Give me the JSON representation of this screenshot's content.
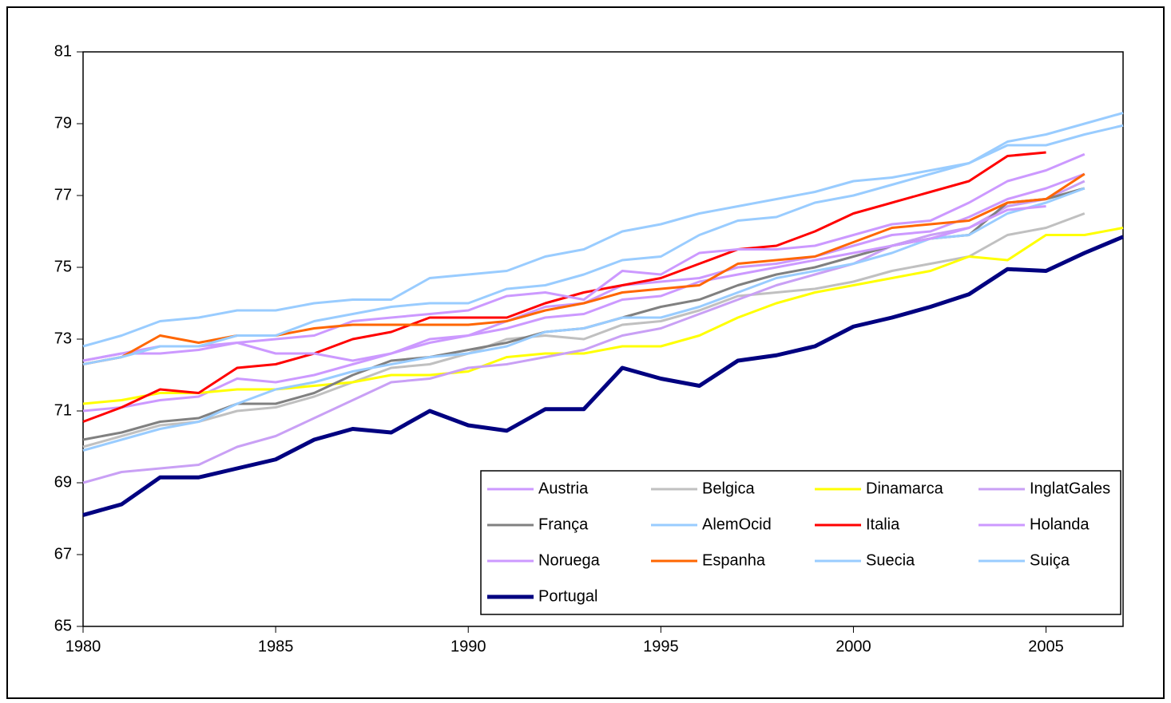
{
  "chart_data": {
    "type": "line",
    "x": [
      1980,
      1981,
      1982,
      1983,
      1984,
      1985,
      1986,
      1987,
      1988,
      1989,
      1990,
      1991,
      1992,
      1993,
      1994,
      1995,
      1996,
      1997,
      1998,
      1999,
      2000,
      2001,
      2002,
      2003,
      2004,
      2005,
      2006,
      2007
    ],
    "xlim": [
      1980,
      2007
    ],
    "xticks": [
      1980,
      1985,
      1990,
      1995,
      2000,
      2005
    ],
    "ylim": [
      65,
      81
    ],
    "yticks": [
      65,
      67,
      69,
      71,
      73,
      75,
      77,
      79,
      81
    ],
    "legend": "bottom right",
    "series": [
      {
        "name": "Austria",
        "color": "#cc99ff",
        "values": [
          71.0,
          71.1,
          71.3,
          71.4,
          71.9,
          71.8,
          72.0,
          72.3,
          72.6,
          72.9,
          73.1,
          73.5,
          73.9,
          74.0,
          74.5,
          74.6,
          74.7,
          75.0,
          75.1,
          75.3,
          75.6,
          75.9,
          76.0,
          76.4,
          76.9,
          77.2,
          77.6,
          null
        ]
      },
      {
        "name": "Belgica",
        "color": "#c0c0c0",
        "values": [
          70.0,
          70.3,
          70.6,
          70.7,
          71.0,
          71.1,
          71.4,
          71.8,
          72.2,
          72.3,
          72.6,
          73.0,
          73.1,
          73.0,
          73.4,
          73.5,
          73.8,
          74.2,
          74.3,
          74.4,
          74.6,
          74.9,
          75.1,
          75.3,
          75.9,
          76.1,
          76.5,
          null
        ]
      },
      {
        "name": "Dinamarca",
        "color": "#ffff00",
        "values": [
          71.2,
          71.3,
          71.5,
          71.5,
          71.6,
          71.6,
          71.7,
          71.8,
          72.0,
          72.0,
          72.1,
          72.5,
          72.6,
          72.6,
          72.8,
          72.8,
          73.1,
          73.6,
          74.0,
          74.3,
          74.5,
          74.7,
          74.9,
          75.3,
          75.2,
          75.9,
          75.9,
          76.1
        ]
      },
      {
        "name": "InglatGales",
        "color": "#c9a0f5",
        "values": [
          69.0,
          69.3,
          69.4,
          69.5,
          70.0,
          70.3,
          70.8,
          71.3,
          71.8,
          71.9,
          72.2,
          72.3,
          72.5,
          72.7,
          73.1,
          73.3,
          73.7,
          74.1,
          74.5,
          74.8,
          75.1,
          75.6,
          75.9,
          76.1,
          76.7,
          76.9,
          77.4,
          null
        ]
      },
      {
        "name": "França",
        "color": "#808080",
        "values": [
          70.2,
          70.4,
          70.7,
          70.8,
          71.2,
          71.2,
          71.5,
          72.0,
          72.4,
          72.5,
          72.7,
          72.9,
          73.2,
          73.3,
          73.6,
          73.9,
          74.1,
          74.5,
          74.8,
          75.0,
          75.3,
          75.6,
          75.8,
          75.9,
          76.8,
          76.9,
          77.2,
          null
        ]
      },
      {
        "name": "AlemOcid",
        "color": "#99ccff",
        "values": [
          69.9,
          70.2,
          70.5,
          70.7,
          71.2,
          71.6,
          71.8,
          72.1,
          72.3,
          72.5,
          72.6,
          72.8,
          73.2,
          73.3,
          73.6,
          73.6,
          73.9,
          74.3,
          74.7,
          74.9,
          75.1,
          75.4,
          75.8,
          75.9,
          76.5,
          76.8,
          77.2,
          null
        ]
      },
      {
        "name": "Italia",
        "color": "#ff0000",
        "values": [
          70.7,
          71.1,
          71.6,
          71.5,
          72.2,
          72.3,
          72.6,
          73.0,
          73.2,
          73.6,
          73.6,
          73.6,
          74.0,
          74.3,
          74.5,
          74.7,
          75.1,
          75.5,
          75.6,
          76.0,
          76.5,
          76.8,
          77.1,
          77.4,
          78.1,
          78.2,
          null,
          null
        ]
      },
      {
        "name": "Holanda",
        "color": "#cc99ff",
        "values": [
          72.4,
          72.6,
          72.6,
          72.7,
          72.9,
          72.6,
          72.6,
          72.4,
          72.6,
          73.0,
          73.1,
          73.3,
          73.6,
          73.7,
          74.1,
          74.2,
          74.6,
          74.8,
          75.0,
          75.2,
          75.4,
          75.6,
          75.8,
          76.1,
          76.6,
          76.7,
          null,
          null
        ]
      },
      {
        "name": "Noruega",
        "color": "#cc99ff",
        "values": [
          72.4,
          72.6,
          72.8,
          72.8,
          72.9,
          73.0,
          73.1,
          73.5,
          73.6,
          73.7,
          73.8,
          74.2,
          74.3,
          74.1,
          74.9,
          74.8,
          75.4,
          75.5,
          75.5,
          75.6,
          75.9,
          76.2,
          76.3,
          76.8,
          77.4,
          77.7,
          78.15,
          null
        ]
      },
      {
        "name": "Espanha",
        "color": "#ff6600",
        "values": [
          72.3,
          72.5,
          73.1,
          72.9,
          73.1,
          73.1,
          73.3,
          73.4,
          73.4,
          73.4,
          73.4,
          73.5,
          73.8,
          74.0,
          74.3,
          74.4,
          74.5,
          75.1,
          75.2,
          75.3,
          75.7,
          76.1,
          76.2,
          76.3,
          76.8,
          76.9,
          77.6,
          null
        ]
      },
      {
        "name": "Suecia",
        "color": "#99ccff",
        "values": [
          72.3,
          72.5,
          72.8,
          72.8,
          73.1,
          73.1,
          73.5,
          73.7,
          73.9,
          74.0,
          74.0,
          74.4,
          74.5,
          74.8,
          75.2,
          75.3,
          75.9,
          76.3,
          76.4,
          76.8,
          77.0,
          77.3,
          77.6,
          77.9,
          78.4,
          78.4,
          78.7,
          78.95
        ]
      },
      {
        "name": "Suiça",
        "color": "#99ccff",
        "values": [
          72.8,
          73.1,
          73.5,
          73.6,
          73.8,
          73.8,
          74.0,
          74.1,
          74.1,
          74.7,
          74.8,
          74.9,
          75.3,
          75.5,
          76.0,
          76.2,
          76.5,
          76.7,
          76.9,
          77.1,
          77.4,
          77.5,
          77.7,
          77.9,
          78.5,
          78.7,
          79.0,
          79.3
        ]
      },
      {
        "name": "Portugal",
        "color": "#000080",
        "values": [
          68.1,
          68.4,
          69.15,
          69.15,
          69.4,
          69.65,
          70.2,
          70.5,
          70.4,
          71.0,
          70.6,
          70.45,
          71.05,
          71.05,
          72.2,
          71.9,
          71.7,
          72.4,
          72.55,
          72.8,
          73.35,
          73.6,
          73.9,
          74.25,
          74.95,
          74.9,
          75.4,
          75.85
        ]
      }
    ]
  }
}
